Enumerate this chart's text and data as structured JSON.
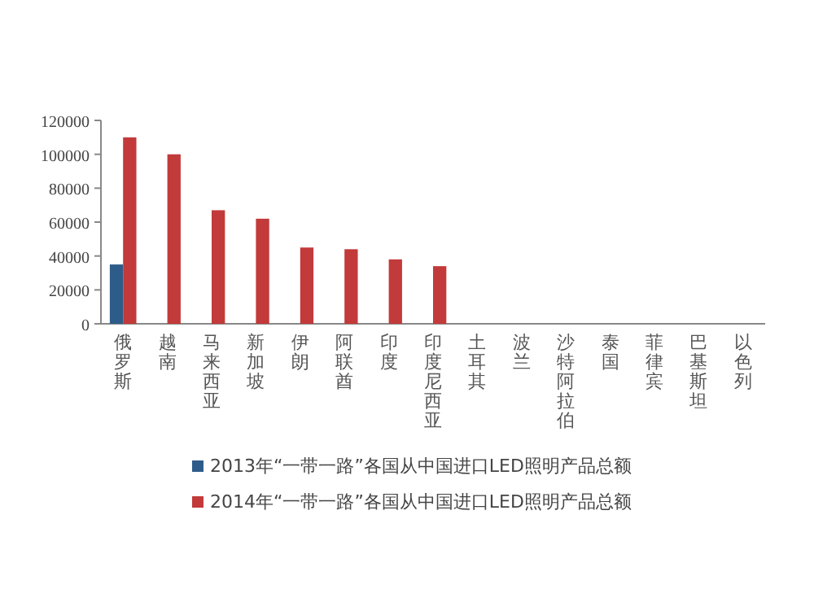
{
  "chart_data": {
    "type": "bar",
    "categories": [
      "俄罗斯",
      "越南",
      "马来西亚",
      "新加坡",
      "伊朗",
      "阿联酋",
      "印度",
      "印度尼西亚",
      "土耳其",
      "波兰",
      "沙特阿拉伯",
      "泰国",
      "菲律宾",
      "巴基斯坦",
      "以色列"
    ],
    "series": [
      {
        "name": "2013年“一带一路”各国从中国进口LED照明产品总额",
        "color": "#2e5c8a",
        "values": [
          35000,
          null,
          null,
          null,
          null,
          null,
          null,
          null,
          null,
          null,
          null,
          null,
          null,
          null,
          null
        ]
      },
      {
        "name": "2014年“一带一路”各国从中国进口LED照明产品总额",
        "color": "#c23a3a",
        "values": [
          110000,
          100000,
          67000,
          62000,
          45000,
          44000,
          38000,
          34000,
          null,
          null,
          null,
          null,
          null,
          null,
          null
        ]
      }
    ],
    "ylim": [
      0,
      120000
    ],
    "yticks": [
      0,
      20000,
      40000,
      60000,
      80000,
      100000,
      120000
    ],
    "legend": "bottom"
  }
}
